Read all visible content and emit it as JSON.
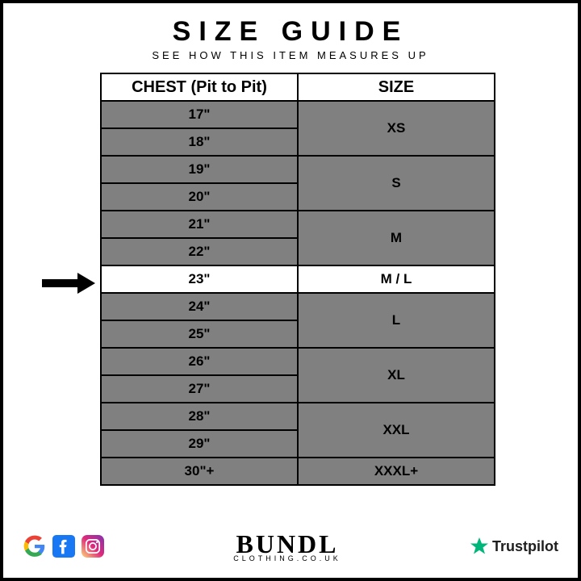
{
  "header": {
    "title": "SIZE GUIDE",
    "subtitle": "SEE HOW THIS ITEM MEASURES UP"
  },
  "table": {
    "col_chest": "CHEST (Pit to Pit)",
    "col_size": "SIZE",
    "rows": [
      {
        "chest": "17\"",
        "size": "XS",
        "span": 2,
        "highlight": false
      },
      {
        "chest": "18\"",
        "highlight": false
      },
      {
        "chest": "19\"",
        "size": "S",
        "span": 2,
        "highlight": false
      },
      {
        "chest": "20\"",
        "highlight": false
      },
      {
        "chest": "21\"",
        "size": "M",
        "span": 2,
        "highlight": false
      },
      {
        "chest": "22\"",
        "highlight": false
      },
      {
        "chest": "23\"",
        "size": "M / L",
        "span": 1,
        "highlight": true
      },
      {
        "chest": "24\"",
        "size": "L",
        "span": 2,
        "highlight": false
      },
      {
        "chest": "25\"",
        "highlight": false
      },
      {
        "chest": "26\"",
        "size": "XL",
        "span": 2,
        "highlight": false
      },
      {
        "chest": "27\"",
        "highlight": false
      },
      {
        "chest": "28\"",
        "size": "XXL",
        "span": 2,
        "highlight": false
      },
      {
        "chest": "29\"",
        "highlight": false
      },
      {
        "chest": "30\"+",
        "size": "XXXL+",
        "span": 1,
        "highlight": false
      }
    ]
  },
  "footer": {
    "brand_name": "BUNDL",
    "brand_domain": "CLOTHING.CO.UK",
    "trustpilot_label": "Trustpilot"
  },
  "colors": {
    "row_bg": "#808080",
    "highlight_bg": "#ffffff",
    "border": "#000000",
    "google_red": "#ea4335",
    "google_yellow": "#fbbc05",
    "google_green": "#34a853",
    "google_blue": "#4285f4",
    "facebook": "#1877f2",
    "instagram_a": "#feda77",
    "instagram_b": "#dd2a7b",
    "instagram_c": "#8134af",
    "trustpilot_green": "#00b67a"
  }
}
